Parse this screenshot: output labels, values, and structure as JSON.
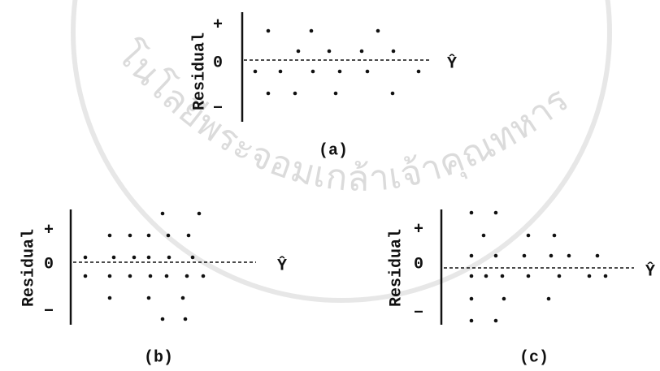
{
  "watermark": "โนโลยีพระจอมเกล้าเจ้าคุณทหาร",
  "panels": [
    {
      "label": "(a)",
      "y_axis_label": "Residual",
      "ticks": [
        "+",
        "0",
        "−"
      ],
      "x_axis_label": "Ŷ"
    },
    {
      "label": "(b)",
      "y_axis_label": "Residual",
      "ticks": [
        "+",
        "0",
        "−"
      ],
      "x_axis_label": "Ŷ"
    },
    {
      "label": "(c)",
      "y_axis_label": "Residual",
      "ticks": [
        "+",
        "0",
        "−"
      ],
      "x_axis_label": "Ŷ"
    }
  ]
}
